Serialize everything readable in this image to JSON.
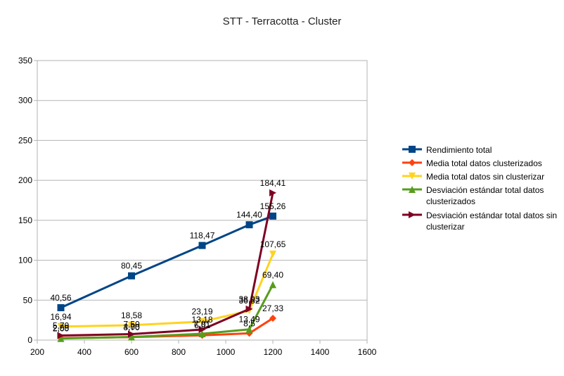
{
  "chart_data": {
    "type": "line",
    "title": "STT - Terracotta - Cluster",
    "xlabel": "",
    "ylabel": "",
    "xlim": [
      200,
      1600
    ],
    "ylim": [
      0,
      350
    ],
    "x_ticks": [
      200,
      400,
      600,
      800,
      1000,
      1200,
      1400,
      1600
    ],
    "y_ticks": [
      0,
      50,
      100,
      150,
      200,
      250,
      300,
      350
    ],
    "grid": "horizontal",
    "legend_position": "right",
    "x": [
      300,
      600,
      900,
      1100,
      1200
    ],
    "series": [
      {
        "name": "Rendimiento total",
        "color": "#004586",
        "marker": "square",
        "values": [
          40.56,
          80.45,
          118.47,
          144.4,
          155.26
        ],
        "labels": [
          "40,56",
          "80,45",
          "118,47",
          "144,40",
          "155,26"
        ]
      },
      {
        "name": "Media total datos clusterizados",
        "color": "#ff420e",
        "marker": "diamond",
        "values": [
          2.5,
          3.7,
          6.0,
          8.5,
          27.33
        ],
        "labels": [
          "2,55",
          "3,70",
          "6,01",
          "8,5",
          "27,33"
        ]
      },
      {
        "name": "Media total datos sin clusterizar",
        "color": "#ffd320",
        "marker": "triangle-down",
        "values": [
          16.94,
          18.58,
          23.19,
          36.82,
          107.65
        ],
        "labels": [
          "16,94",
          "18,58",
          "23,19",
          "36,82",
          "107,65"
        ]
      },
      {
        "name": "Desviación estándar total datos clusterizados",
        "color": "#579d1c",
        "marker": "triangle-up",
        "values": [
          2.0,
          4.0,
          7.9,
          13.49,
          69.4
        ],
        "labels": [
          "2,00",
          "4,00",
          "7,91",
          "13,49",
          "69,40"
        ]
      },
      {
        "name": "Desviación estándar total datos sin clusterizar",
        "color": "#7e0021",
        "marker": "triangle-right",
        "values": [
          5.7,
          7.5,
          13.18,
          38.93,
          184.41
        ],
        "labels": [
          "5,70",
          "7,50",
          "13,18",
          "38,93",
          "184,41"
        ]
      }
    ],
    "legend_lines": [
      [
        "Rendimiento total"
      ],
      [
        "Media total datos clusterizados"
      ],
      [
        "Media total datos sin clusterizar"
      ],
      [
        "Desviación estándar total datos",
        "clusterizados"
      ],
      [
        "Desviación estándar total datos sin",
        "clusterizar"
      ]
    ]
  }
}
